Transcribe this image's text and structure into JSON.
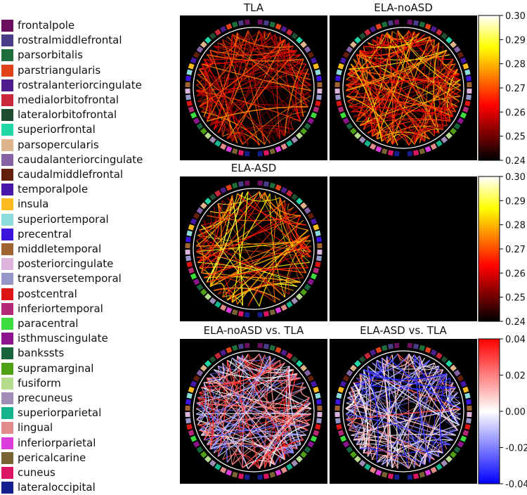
{
  "legend": {
    "items": [
      {
        "label": "frontalpole",
        "color": "#6b0f5f"
      },
      {
        "label": "rostralmiddlefrontal",
        "color": "#4a3c86"
      },
      {
        "label": "parsorbitalis",
        "color": "#1e6e3c"
      },
      {
        "label": "parstriangularis",
        "color": "#e0431a"
      },
      {
        "label": "rostralanteriorcingulate",
        "color": "#4f1d8e"
      },
      {
        "label": "medialorbitofrontal",
        "color": "#c8283a"
      },
      {
        "label": "lateralorbitofrontal",
        "color": "#1f4d32"
      },
      {
        "label": "superiorfrontal",
        "color": "#1fd6a4"
      },
      {
        "label": "parsopercularis",
        "color": "#ddb48c"
      },
      {
        "label": "caudalanteriorcingulate",
        "color": "#8462a3"
      },
      {
        "label": "caudalmiddlefrontal",
        "color": "#641e0c"
      },
      {
        "label": "temporalpole",
        "color": "#4617a8"
      },
      {
        "label": "insula",
        "color": "#ffbb1e"
      },
      {
        "label": "superiortemporal",
        "color": "#8cdcdc"
      },
      {
        "label": "precentral",
        "color": "#3c14dc"
      },
      {
        "label": "middletemporal",
        "color": "#a06432"
      },
      {
        "label": "posteriorcingulate",
        "color": "#dcb4dc"
      },
      {
        "label": "transversetemporal",
        "color": "#9696c8"
      },
      {
        "label": "postcentral",
        "color": "#dc1414"
      },
      {
        "label": "inferiortemporal",
        "color": "#b42878"
      },
      {
        "label": "paracentral",
        "color": "#3cdc3c"
      },
      {
        "label": "isthmuscingulate",
        "color": "#8c148c"
      },
      {
        "label": "bankssts",
        "color": "#19643c"
      },
      {
        "label": "supramarginal",
        "color": "#50a014"
      },
      {
        "label": "fusiform",
        "color": "#b4dc8c"
      },
      {
        "label": "precuneus",
        "color": "#a08cb4"
      },
      {
        "label": "superiorparietal",
        "color": "#14b48c"
      },
      {
        "label": "lingual",
        "color": "#e18c8c"
      },
      {
        "label": "inferiorparietal",
        "color": "#dc3cdc"
      },
      {
        "label": "pericalcarine",
        "color": "#786432"
      },
      {
        "label": "cuneus",
        "color": "#dc1464"
      },
      {
        "label": "lateraloccipital",
        "color": "#141e8c"
      }
    ]
  },
  "chart_data": [
    {
      "type": "chord",
      "title": "TLA",
      "colormap": "hot",
      "colorbar": {
        "ticks": [
          "0.30",
          "0.29",
          "0.28",
          "0.27",
          "0.26",
          "0.25",
          "0.24"
        ],
        "range": [
          0.24,
          0.3
        ]
      }
    },
    {
      "type": "chord",
      "title": "ELA-noASD",
      "colormap": "hot"
    },
    {
      "type": "chord",
      "title": "ELA-ASD",
      "colormap": "hot",
      "colorbar": {
        "ticks": [
          "0.30",
          "0.29",
          "0.28",
          "0.27",
          "0.26",
          "0.25",
          "0.24"
        ],
        "range": [
          0.24,
          0.3
        ]
      }
    },
    {
      "type": "chord",
      "title": "ELA-noASD vs. TLA",
      "colormap": "bwr",
      "colorbar": {
        "ticks": [
          "0.04",
          "0.02",
          "0.00",
          "-0.02",
          "-0.04"
        ],
        "range": [
          -0.04,
          0.04
        ]
      }
    },
    {
      "type": "chord",
      "title": "ELA-ASD vs. TLA",
      "colormap": "bwr"
    }
  ]
}
